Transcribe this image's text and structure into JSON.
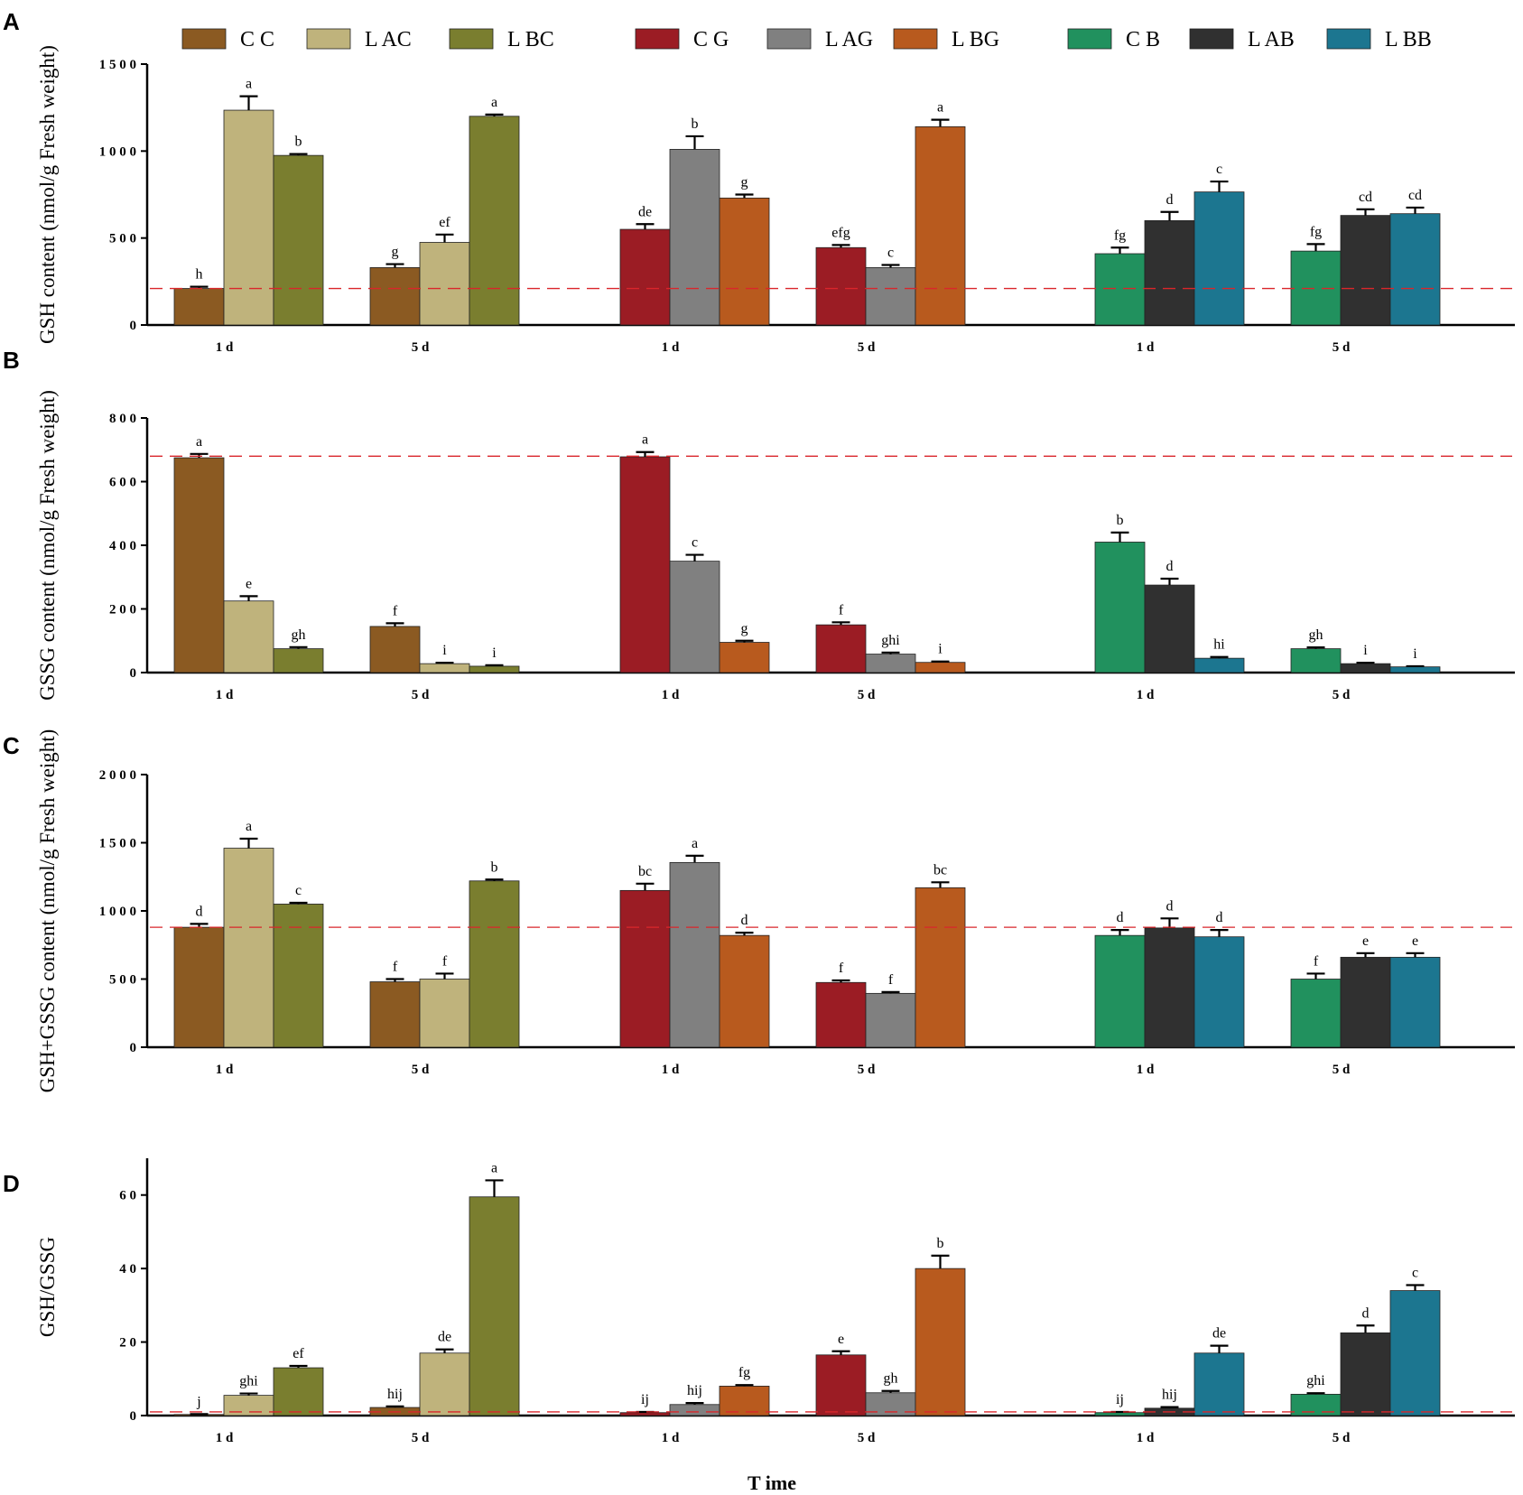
{
  "legend": [
    {
      "key": "CC",
      "label": "C C",
      "color": "#8B5A22"
    },
    {
      "key": "LAC",
      "label": "L AC",
      "color": "#BFB37C"
    },
    {
      "key": "LBC",
      "label": "L BC",
      "color": "#7A7E2F"
    },
    {
      "key": "CG",
      "label": "C G",
      "color": "#9B1C24"
    },
    {
      "key": "LAG",
      "label": "L AG",
      "color": "#808080"
    },
    {
      "key": "LBG",
      "label": "L BG",
      "color": "#B85A1E"
    },
    {
      "key": "CB",
      "label": "C B",
      "color": "#21915E"
    },
    {
      "key": "LAB",
      "label": "L AB",
      "color": "#303030"
    },
    {
      "key": "LBB",
      "label": "L BB",
      "color": "#1C7690"
    }
  ],
  "x_axis_title": "T ime",
  "chart_data": [
    {
      "panel": "A",
      "type": "bar",
      "ylabel": "GSH content (nmol/g Fresh weight)",
      "ylim": [
        0,
        1500
      ],
      "yticks": [
        0,
        500,
        1000,
        1500
      ],
      "ytick_labels": [
        "0",
        "5 0 0",
        "1 0 0 0",
        "1 5 0 0"
      ],
      "reference_line": 210,
      "groups": [
        {
          "label": "1 d",
          "series": [
            "CC",
            "LAC",
            "LBC"
          ],
          "values": [
            210,
            1235,
            975
          ],
          "errors": [
            10,
            80,
            8
          ],
          "letters": [
            "h",
            "a",
            "b"
          ]
        },
        {
          "label": "5 d",
          "series": [
            "CC",
            "LAC",
            "LBC"
          ],
          "values": [
            330,
            475,
            1200
          ],
          "errors": [
            20,
            45,
            10
          ],
          "letters": [
            "g",
            "ef",
            "a"
          ]
        },
        {
          "label": "1 d",
          "series": [
            "CG",
            "LAG",
            "LBG"
          ],
          "values": [
            550,
            1010,
            730
          ],
          "errors": [
            30,
            75,
            20
          ],
          "letters": [
            "de",
            "b",
            "g"
          ]
        },
        {
          "label": "5 d",
          "series": [
            "CG",
            "LAG",
            "LBG"
          ],
          "values": [
            445,
            330,
            1140
          ],
          "errors": [
            15,
            15,
            40
          ],
          "letters": [
            "efg",
            "c",
            "a"
          ]
        },
        {
          "label": "1 d",
          "series": [
            "CB",
            "LAB",
            "LBB"
          ],
          "values": [
            410,
            600,
            765
          ],
          "errors": [
            35,
            50,
            60
          ],
          "letters": [
            "fg",
            "d",
            "c"
          ]
        },
        {
          "label": "5 d",
          "series": [
            "CB",
            "LAB",
            "LBB"
          ],
          "values": [
            425,
            630,
            640
          ],
          "errors": [
            40,
            35,
            35
          ],
          "letters": [
            "fg",
            "cd",
            "cd"
          ]
        }
      ]
    },
    {
      "panel": "B",
      "type": "bar",
      "ylabel": "GSSG content (nmol/g Fresh weight)",
      "ylim": [
        0,
        800
      ],
      "yticks": [
        0,
        200,
        400,
        600,
        800
      ],
      "ytick_labels": [
        "0",
        "2 0 0",
        "4 0 0",
        "6 0 0",
        "8 0 0"
      ],
      "reference_line": 680,
      "groups": [
        {
          "label": "1 d",
          "series": [
            "CC",
            "LAC",
            "LBC"
          ],
          "values": [
            675,
            225,
            75
          ],
          "errors": [
            12,
            15,
            5
          ],
          "letters": [
            "a",
            "e",
            "gh"
          ]
        },
        {
          "label": "5 d",
          "series": [
            "CC",
            "LAC",
            "LBC"
          ],
          "values": [
            145,
            28,
            20
          ],
          "errors": [
            10,
            3,
            3
          ],
          "letters": [
            "f",
            "i",
            "i"
          ]
        },
        {
          "label": "1 d",
          "series": [
            "CG",
            "LAG",
            "LBG"
          ],
          "values": [
            678,
            350,
            95
          ],
          "errors": [
            15,
            20,
            5
          ],
          "letters": [
            "a",
            "c",
            "g"
          ]
        },
        {
          "label": "5 d",
          "series": [
            "CG",
            "LAG",
            "LBG"
          ],
          "values": [
            150,
            58,
            32
          ],
          "errors": [
            8,
            5,
            3
          ],
          "letters": [
            "f",
            "ghi",
            "i"
          ]
        },
        {
          "label": "1 d",
          "series": [
            "CB",
            "LAB",
            "LBB"
          ],
          "values": [
            410,
            275,
            45
          ],
          "errors": [
            30,
            20,
            4
          ],
          "letters": [
            "b",
            "d",
            "hi"
          ]
        },
        {
          "label": "5 d",
          "series": [
            "CB",
            "LAB",
            "LBB"
          ],
          "values": [
            75,
            28,
            18
          ],
          "errors": [
            4,
            3,
            2
          ],
          "letters": [
            "gh",
            "i",
            "i"
          ]
        }
      ]
    },
    {
      "panel": "C",
      "type": "bar",
      "ylabel": "GSH+GSSG content (nmol/g Fresh weight)",
      "ylim": [
        0,
        2000
      ],
      "yticks": [
        0,
        500,
        1000,
        1500,
        2000
      ],
      "ytick_labels": [
        "0",
        "5 0 0",
        "1 0 0 0",
        "1 5 0 0",
        "2 0 0 0"
      ],
      "reference_line": 880,
      "groups": [
        {
          "label": "1 d",
          "series": [
            "CC",
            "LAC",
            "LBC"
          ],
          "values": [
            880,
            1460,
            1050
          ],
          "errors": [
            25,
            70,
            10
          ],
          "letters": [
            "d",
            "a",
            "c"
          ]
        },
        {
          "label": "5 d",
          "series": [
            "CC",
            "LAC",
            "LBC"
          ],
          "values": [
            480,
            500,
            1220
          ],
          "errors": [
            20,
            40,
            10
          ],
          "letters": [
            "f",
            "f",
            "b"
          ]
        },
        {
          "label": "1 d",
          "series": [
            "CG",
            "LAG",
            "LBG"
          ],
          "values": [
            1150,
            1355,
            820
          ],
          "errors": [
            50,
            50,
            20
          ],
          "letters": [
            "bc",
            "a",
            "d"
          ]
        },
        {
          "label": "5 d",
          "series": [
            "CG",
            "LAG",
            "LBG"
          ],
          "values": [
            475,
            395,
            1170
          ],
          "errors": [
            15,
            10,
            40
          ],
          "letters": [
            "f",
            "f",
            "bc"
          ]
        },
        {
          "label": "1 d",
          "series": [
            "CB",
            "LAB",
            "LBB"
          ],
          "values": [
            820,
            875,
            810
          ],
          "errors": [
            40,
            70,
            50
          ],
          "letters": [
            "d",
            "d",
            "d"
          ]
        },
        {
          "label": "5 d",
          "series": [
            "CB",
            "LAB",
            "LBB"
          ],
          "values": [
            500,
            660,
            660
          ],
          "errors": [
            40,
            30,
            30
          ],
          "letters": [
            "f",
            "e",
            "e"
          ]
        }
      ]
    },
    {
      "panel": "D",
      "type": "bar",
      "ylabel": "GSH/GSSG",
      "ylim": [
        0,
        70
      ],
      "yticks": [
        0,
        20,
        40,
        60
      ],
      "ytick_labels": [
        "0",
        "2 0",
        "4 0",
        "6 0"
      ],
      "reference_line": 1,
      "groups": [
        {
          "label": "1 d",
          "series": [
            "CC",
            "LAC",
            "LBC"
          ],
          "values": [
            0.3,
            5.5,
            13
          ],
          "errors": [
            0.1,
            0.5,
            0.5
          ],
          "letters": [
            "j",
            "ghi",
            "ef"
          ]
        },
        {
          "label": "5 d",
          "series": [
            "CC",
            "LAC",
            "LBC"
          ],
          "values": [
            2.2,
            17,
            59.5
          ],
          "errors": [
            0.3,
            1,
            4.5
          ],
          "letters": [
            "hij",
            "de",
            "a"
          ]
        },
        {
          "label": "1 d",
          "series": [
            "CG",
            "LAG",
            "LBG"
          ],
          "values": [
            0.8,
            3,
            8
          ],
          "errors": [
            0.2,
            0.4,
            0.3
          ],
          "letters": [
            "ij",
            "hij",
            "fg"
          ]
        },
        {
          "label": "5 d",
          "series": [
            "CG",
            "LAG",
            "LBG"
          ],
          "values": [
            16.5,
            6.2,
            40
          ],
          "errors": [
            1,
            0.5,
            3.5
          ],
          "letters": [
            "e",
            "gh",
            "b"
          ]
        },
        {
          "label": "1 d",
          "series": [
            "CB",
            "LAB",
            "LBB"
          ],
          "values": [
            0.8,
            2,
            17
          ],
          "errors": [
            0.2,
            0.3,
            2
          ],
          "letters": [
            "ij",
            "hij",
            "de"
          ]
        },
        {
          "label": "5 d",
          "series": [
            "CB",
            "LAB",
            "LBB"
          ],
          "values": [
            5.8,
            22.5,
            34
          ],
          "errors": [
            0.3,
            2,
            1.5
          ],
          "letters": [
            "ghi",
            "d",
            "c"
          ]
        }
      ]
    }
  ]
}
